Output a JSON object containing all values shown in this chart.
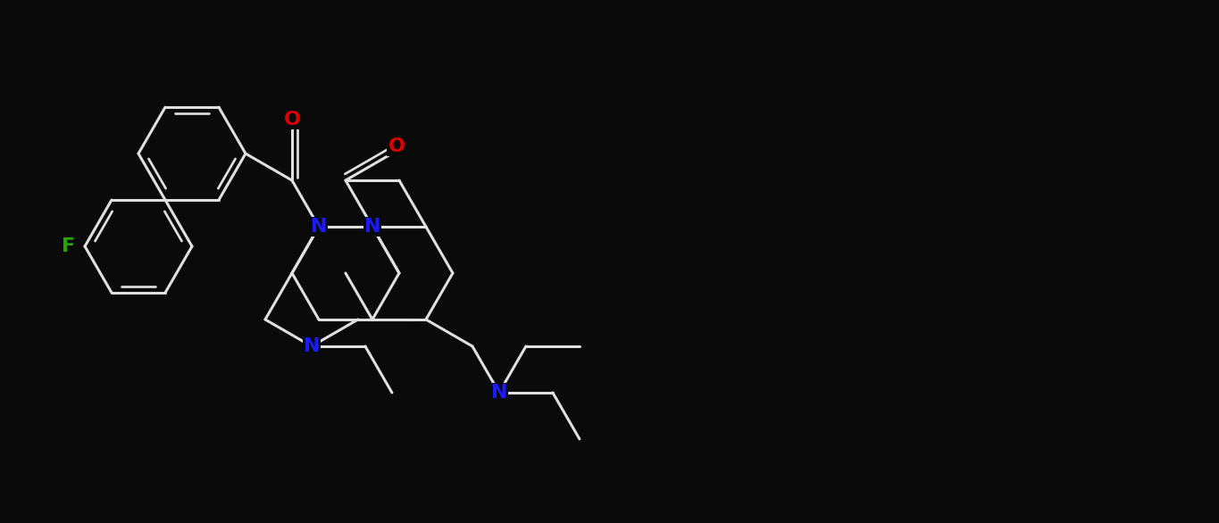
{
  "bg": "#0a0a0a",
  "fg": "#e0e0e0",
  "N_col": "#1a1aff",
  "O_col": "#dd0000",
  "F_col": "#22aa00",
  "lw": 2.2,
  "fs": 16,
  "figsize": [
    13.65,
    5.86
  ],
  "dpi": 100,
  "xl": [
    0.0,
    13.65
  ],
  "yl": [
    0.0,
    5.86
  ]
}
